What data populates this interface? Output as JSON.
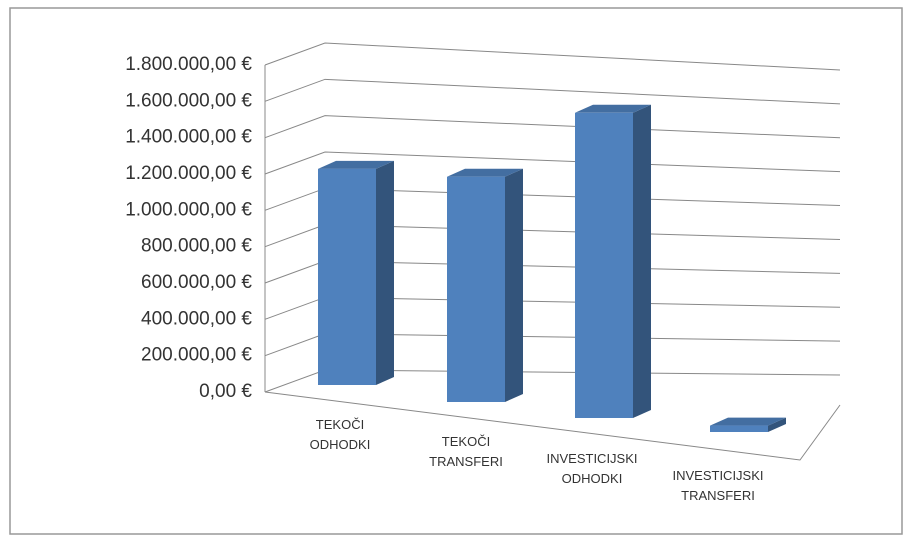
{
  "chart_data": {
    "type": "bar3d",
    "categories": [
      "TEKOČI ODHODKI",
      "TEKOČI TRANSFERI",
      "INVESTICIJSKI ODHODKI",
      "INVESTICIJSKI TRANSFERI"
    ],
    "values": [
      1190000,
      1170000,
      1500000,
      30000
    ],
    "color": "#4f81bd",
    "ylim": [
      0,
      1800000
    ],
    "yticks": [
      {
        "value": 0,
        "label": "0,00 €"
      },
      {
        "value": 200000,
        "label": "200.000,00 €"
      },
      {
        "value": 400000,
        "label": "400.000,00 €"
      },
      {
        "value": 600000,
        "label": "600.000,00 €"
      },
      {
        "value": 800000,
        "label": "800.000,00 €"
      },
      {
        "value": 1000000,
        "label": "1.000.000,00 €"
      },
      {
        "value": 1200000,
        "label": "1.200.000,00 €"
      },
      {
        "value": 1400000,
        "label": "1.400.000,00 €"
      },
      {
        "value": 1600000,
        "label": "1.600.000,00 €"
      },
      {
        "value": 1800000,
        "label": "1.800.000,00 €"
      }
    ],
    "grid": true
  }
}
